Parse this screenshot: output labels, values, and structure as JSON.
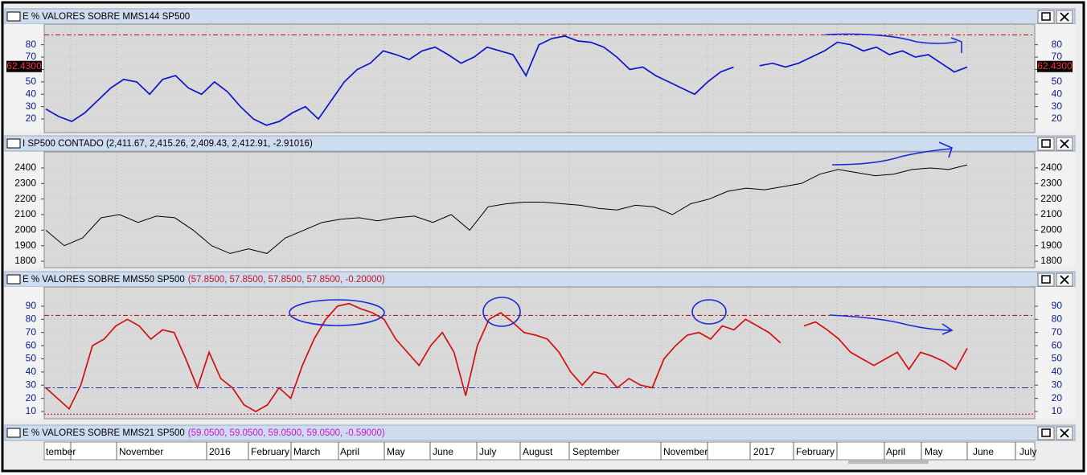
{
  "panels": [
    {
      "title": "E % VALORES SOBRE MMS144 SP500",
      "color": "#0a14c8",
      "tick_color": "#0a1a8a",
      "ylim": [
        9,
        96
      ],
      "yticks": [
        20,
        30,
        40,
        50,
        60,
        70,
        80
      ],
      "last": {
        "value": 62.43,
        "label": "62.4300"
      },
      "ref_lines": [
        {
          "value": 88,
          "color": "#c00000"
        }
      ],
      "values": [
        28,
        22,
        18,
        25,
        35,
        45,
        52,
        50,
        40,
        52,
        55,
        45,
        40,
        50,
        42,
        30,
        20,
        15,
        18,
        25,
        30,
        20,
        35,
        50,
        60,
        65,
        75,
        72,
        68,
        75,
        78,
        72,
        65,
        70,
        78,
        75,
        72,
        55,
        80,
        85,
        87,
        83,
        82,
        78,
        70,
        60,
        62,
        55,
        50,
        45,
        40,
        50,
        58,
        62,
        null,
        63,
        65,
        62,
        65,
        70,
        75,
        82,
        80,
        75,
        78,
        72,
        75,
        70,
        72,
        65,
        58,
        62
      ]
    },
    {
      "title": "I SP500 CONTADO (2,411.67, 2,415.26, 2,409.43, 2,412.91, -2.91016)",
      "color": "#000000",
      "tick_color": "#000000",
      "ylim": [
        1759,
        2498
      ],
      "yticks": [
        1800,
        1900,
        2000,
        2100,
        2200,
        2300,
        2400
      ],
      "ref_lines": [],
      "values": [
        2000,
        1900,
        1950,
        2080,
        2100,
        2050,
        2090,
        2080,
        2000,
        1900,
        1850,
        1880,
        1850,
        1950,
        2000,
        2050,
        2070,
        2080,
        2060,
        2080,
        2090,
        2050,
        2100,
        2000,
        2150,
        2170,
        2180,
        2180,
        2170,
        2160,
        2140,
        2130,
        2160,
        2150,
        2100,
        2170,
        2200,
        2250,
        2270,
        2260,
        2280,
        2300,
        2360,
        2390,
        2370,
        2350,
        2360,
        2390,
        2400,
        2390,
        2420
      ]
    },
    {
      "title": "E % VALORES SOBRE MMS50 SP500",
      "readout": "(57.8500, 57.8500, 57.8500, 57.8500, -0.20000)",
      "readout_color": "#d01010",
      "color": "#d01010",
      "tick_color": "#0a1a8a",
      "ylim": [
        4.5,
        104
      ],
      "yticks": [
        10,
        20,
        30,
        40,
        50,
        60,
        70,
        80,
        90
      ],
      "ref_lines": [
        {
          "value": 83,
          "color": "#c00000"
        },
        {
          "value": 28,
          "color": "#1a2ad0"
        },
        {
          "value": 8,
          "color": "#d01010"
        }
      ],
      "values": [
        28,
        20,
        12,
        30,
        60,
        65,
        75,
        80,
        75,
        65,
        72,
        70,
        50,
        28,
        55,
        35,
        28,
        15,
        10,
        15,
        28,
        20,
        45,
        65,
        80,
        90,
        92,
        88,
        85,
        80,
        65,
        55,
        45,
        60,
        70,
        55,
        22,
        60,
        80,
        85,
        78,
        70,
        68,
        65,
        55,
        40,
        30,
        40,
        38,
        28,
        35,
        30,
        28,
        50,
        60,
        68,
        70,
        65,
        75,
        72,
        80,
        75,
        70,
        62,
        null,
        75,
        78,
        72,
        65,
        55,
        50,
        45,
        50,
        55,
        42,
        55,
        52,
        48,
        42,
        58
      ]
    },
    {
      "title": "E % VALORES SOBRE MMS21 SP500",
      "readout": "(59.0500, 59.0500, 59.0500, 59.0500, -0.59000)",
      "readout_color": "#d010d0"
    }
  ],
  "x_axis": {
    "labels": [
      "tember",
      "November",
      "2016",
      "February",
      "March",
      "April",
      "May",
      "June",
      "July",
      "August",
      "September",
      "November",
      "2017",
      "February",
      "April",
      "May",
      "June",
      "July"
    ]
  }
}
